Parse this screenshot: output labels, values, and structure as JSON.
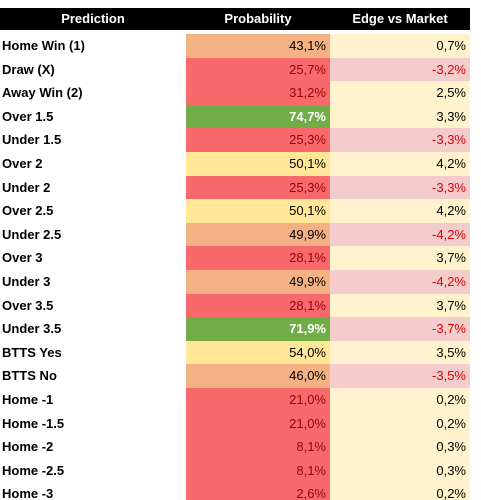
{
  "table": {
    "header": [
      "Prediction",
      "Probability",
      "Edge vs Market"
    ],
    "rows": [
      [
        "Home Win (1)",
        "43,1%",
        "0,7%"
      ],
      [
        "Draw (X)",
        "25,7%",
        "-3,2%"
      ],
      [
        "Away Win (2)",
        "31,2%",
        "2,5%"
      ],
      [
        "Over 1.5",
        "74,7%",
        "3,3%"
      ],
      [
        "Under 1.5",
        "25,3%",
        "-3,3%"
      ],
      [
        "Over 2",
        "50,1%",
        "4,2%"
      ],
      [
        "Under 2",
        "25,3%",
        "-3,3%"
      ],
      [
        "Over 2.5",
        "50,1%",
        "4,2%"
      ],
      [
        "Under 2.5",
        "49,9%",
        "-4,2%"
      ],
      [
        "Over 3",
        "28,1%",
        "3,7%"
      ],
      [
        "Under 3",
        "49,9%",
        "-4,2%"
      ],
      [
        "Over 3.5",
        "28,1%",
        "3,7%"
      ],
      [
        "Under 3.5",
        "71,9%",
        "-3,7%"
      ],
      [
        "BTTS Yes",
        "54,0%",
        "3,5%"
      ],
      [
        "BTTS No",
        "46,0%",
        "-3,5%"
      ],
      [
        "Home -1",
        "21,0%",
        "0,2%"
      ],
      [
        "Home -1.5",
        "21,0%",
        "0,2%"
      ],
      [
        "Home -2",
        "8,1%",
        "0,3%"
      ],
      [
        "Home -2.5",
        "8,1%",
        "0,3%"
      ],
      [
        "Home -3",
        "2,6%",
        "0,2%"
      ]
    ],
    "fills": [
      [
        "#f4b183",
        "#fff2cc"
      ],
      [
        "#f8696b",
        "#f4cccc"
      ],
      [
        "#f8696b",
        "#fff2cc"
      ],
      [
        "#70ad47",
        "#fff2cc"
      ],
      [
        "#f8696b",
        "#f4cccc"
      ],
      [
        "#ffe699",
        "#fff2cc"
      ],
      [
        "#f8696b",
        "#f4cccc"
      ],
      [
        "#ffe699",
        "#fff2cc"
      ],
      [
        "#f4b183",
        "#f4cccc"
      ],
      [
        "#f8696b",
        "#fff2cc"
      ],
      [
        "#f4b183",
        "#f4cccc"
      ],
      [
        "#f8696b",
        "#fff2cc"
      ],
      [
        "#70ad47",
        "#f4cccc"
      ],
      [
        "#ffe699",
        "#fff2cc"
      ],
      [
        "#f4b183",
        "#f4cccc"
      ],
      [
        "#f8696b",
        "#fff2cc"
      ],
      [
        "#f8696b",
        "#fff2cc"
      ],
      [
        "#f8696b",
        "#fff2cc"
      ],
      [
        "#f8696b",
        "#fff2cc"
      ],
      [
        "#f8696b",
        "#fff2cc"
      ]
    ]
  }
}
